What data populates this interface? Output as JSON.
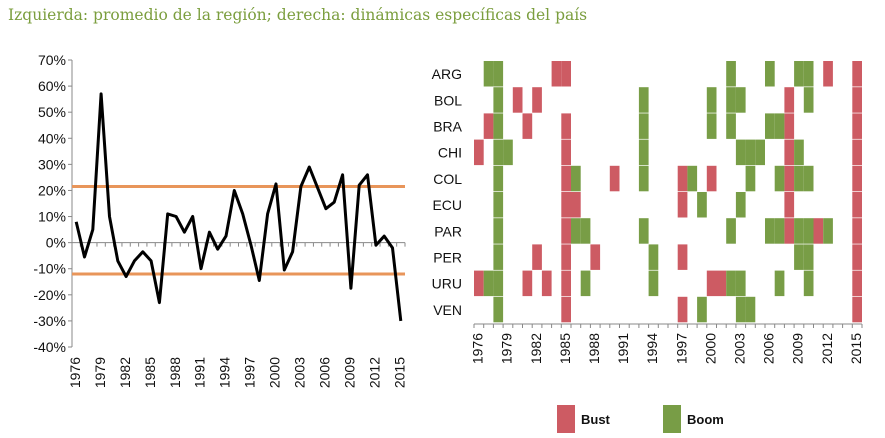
{
  "title": "Izquierda: promedio de la región; derecha: dinámicas específicas del país",
  "colors": {
    "line": "#000000",
    "threshold": "#e8955a",
    "bust": "#cd5b63",
    "boom": "#789d46"
  },
  "chart_data": [
    {
      "type": "line",
      "x": [
        1976,
        1977,
        1978,
        1979,
        1980,
        1981,
        1982,
        1983,
        1984,
        1985,
        1986,
        1987,
        1988,
        1989,
        1990,
        1991,
        1992,
        1993,
        1994,
        1995,
        1996,
        1997,
        1998,
        1999,
        2000,
        2001,
        2002,
        2003,
        2004,
        2005,
        2006,
        2007,
        2008,
        2009,
        2010,
        2011,
        2012,
        2013,
        2014,
        2015
      ],
      "series": [
        {
          "values": [
            8,
            -5.5,
            5,
            57,
            10,
            -7,
            -13,
            -7,
            -3.5,
            -7,
            -23,
            11,
            10,
            4,
            10,
            -10,
            4,
            -2.5,
            2.5,
            20,
            11,
            -1,
            -14.5,
            11,
            22.5,
            -10.5,
            -3.5,
            21.5,
            29,
            21,
            13,
            15.5,
            26,
            -17.5,
            22,
            26,
            -1,
            2.5,
            -2,
            -30
          ]
        }
      ],
      "thresholds": [
        21.5,
        -12
      ],
      "ylim": [
        -40,
        70
      ],
      "yticks": [
        "70%",
        "60%",
        "50%",
        "40%",
        "30%",
        "20%",
        "10%",
        "0%",
        "-10%",
        "-20%",
        "-30%",
        "-40%"
      ],
      "xticks": [
        "1976",
        "1979",
        "1982",
        "1985",
        "1988",
        "1991",
        "1994",
        "1997",
        "2000",
        "2003",
        "2006",
        "2009",
        "2012",
        "2015"
      ]
    },
    {
      "type": "heatmap",
      "countries": [
        "ARG",
        "BOL",
        "BRA",
        "CHI",
        "COL",
        "ECU",
        "PAR",
        "PER",
        "URU",
        "VEN"
      ],
      "year_start": 1976,
      "year_end": 2015,
      "xticks": [
        "1976",
        "1979",
        "1982",
        "1985",
        "1988",
        "1991",
        "1994",
        "1997",
        "2000",
        "2003",
        "2006",
        "2009",
        "2012",
        "2015"
      ],
      "legend": [
        {
          "key": "bust",
          "label": "Bust"
        },
        {
          "key": "boom",
          "label": "Boom"
        }
      ],
      "cells": {
        "ARG": {
          "bust": [
            1984,
            1985,
            2012,
            2015
          ],
          "boom": [
            1977,
            1978,
            2002,
            2006,
            2009,
            2010
          ]
        },
        "BOL": {
          "bust": [
            1980,
            1982,
            2008,
            2015
          ],
          "boom": [
            1978,
            1993,
            2000,
            2002,
            2003,
            2010
          ]
        },
        "BRA": {
          "bust": [
            1977,
            1981,
            1985,
            2008,
            2015
          ],
          "boom": [
            1978,
            1993,
            2000,
            2002,
            2006,
            2007
          ]
        },
        "CHI": {
          "bust": [
            1976,
            1985,
            2008,
            2015
          ],
          "boom": [
            1978,
            1979,
            1993,
            2003,
            2004,
            2005,
            2009
          ]
        },
        "COL": {
          "bust": [
            1985,
            1990,
            1997,
            2000,
            2008,
            2015
          ],
          "boom": [
            1978,
            1986,
            1993,
            1998,
            2004,
            2007,
            2009,
            2010
          ]
        },
        "ECU": {
          "bust": [
            1985,
            1986,
            1997,
            2008,
            2015
          ],
          "boom": [
            1978,
            1999,
            2003
          ]
        },
        "PAR": {
          "bust": [
            1985,
            2008,
            2011,
            2015
          ],
          "boom": [
            1978,
            1986,
            1987,
            1993,
            2002,
            2006,
            2007,
            2009,
            2010,
            2012
          ]
        },
        "PER": {
          "bust": [
            1982,
            1985,
            1988,
            1997,
            2015
          ],
          "boom": [
            1978,
            1994,
            2009,
            2010
          ]
        },
        "URU": {
          "bust": [
            1976,
            1981,
            1983,
            1985,
            2000,
            2001,
            2015
          ],
          "boom": [
            1977,
            1978,
            1987,
            1994,
            2002,
            2003,
            2007,
            2010
          ]
        },
        "VEN": {
          "bust": [
            1985,
            1997,
            2015
          ],
          "boom": [
            1978,
            1999,
            2003,
            2004
          ]
        }
      }
    }
  ]
}
